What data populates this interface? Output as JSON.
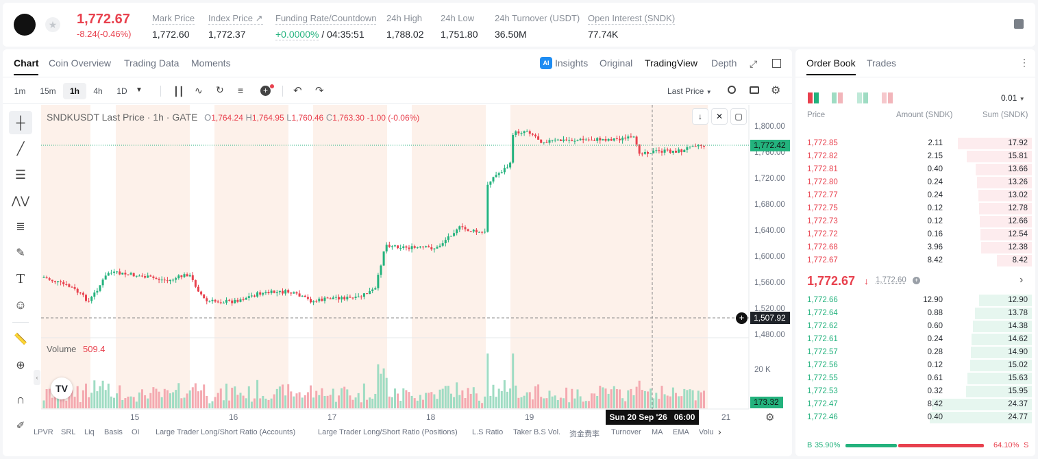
{
  "header": {
    "price": "1,772.67",
    "change": "-8.24(-0.46%)",
    "stats": [
      {
        "label": "Mark Price",
        "value": "1,772.60"
      },
      {
        "label": "Index Price",
        "value": "1,772.37"
      },
      {
        "label": "Funding Rate/Countdown",
        "value_rate": "+0.0000%",
        "value_countdown": "/ 04:35:51"
      },
      {
        "label": "24h High",
        "value": "1,788.02"
      },
      {
        "label": "24h Low",
        "value": "1,751.80"
      },
      {
        "label": "24h Turnover (USDT)",
        "value": "36.50M"
      },
      {
        "label": "Open Interest (SNDK)",
        "value": "77.74K"
      }
    ],
    "index_arrow": "↗"
  },
  "chart_tabs": [
    "Chart",
    "Coin Overview",
    "Trading Data",
    "Moments"
  ],
  "view_tabs": {
    "insights": "Insights",
    "original": "Original",
    "tradingview": "TradingView",
    "depth": "Depth"
  },
  "ai_badge": "AI",
  "intervals": [
    "1m",
    "15m",
    "1h",
    "4h",
    "1D"
  ],
  "price_source": "Last Price",
  "legend": {
    "symbol": "SNDKUSDT Last Price · 1h · GATE",
    "o_label": "O",
    "o": "1,764.24",
    "h_label": "H",
    "h": "1,764.95",
    "l_label": "L",
    "l": "1,760.46",
    "c_label": "C",
    "c": "1,763.30",
    "chg": "-1.00 (-0.06%)"
  },
  "volume_legend": {
    "label": "Volume",
    "value": "509.4"
  },
  "price_tags": {
    "last": "1,772.42",
    "cursor": "1,507.92",
    "volume": "173.32"
  },
  "crosshair_time": "Sun 20 Sep '26   06:00",
  "y_ticks": [
    "1,800.00",
    "1,760.00",
    "1,720.00",
    "1,680.00",
    "1,640.00",
    "1,600.00",
    "1,560.00",
    "1,520.00",
    "1,480.00"
  ],
  "vol_tick": "20 K",
  "x_ticks": [
    "15",
    "16",
    "17",
    "18",
    "19",
    "21"
  ],
  "indicators": [
    "LPVR",
    "SRL",
    "Liq",
    "Basis",
    "OI",
    "Large Trader Long/Short Ratio (Accounts)",
    "Large Trader Long/Short Ratio (Positions)",
    "L.S Ratio",
    "Taker B.S Vol.",
    "资金费率",
    "Turnover",
    "MA",
    "EMA",
    "Volu"
  ],
  "order_book": {
    "tabs": [
      "Order Book",
      "Trades"
    ],
    "precision": "0.01",
    "columns": [
      "Price",
      "Amount (SNDK)",
      "Sum (SNDK)"
    ],
    "asks": [
      {
        "price": "1,772.85",
        "amount": "2.11",
        "sum": "17.92"
      },
      {
        "price": "1,772.82",
        "amount": "2.15",
        "sum": "15.81"
      },
      {
        "price": "1,772.81",
        "amount": "0.40",
        "sum": "13.66"
      },
      {
        "price": "1,772.80",
        "amount": "0.24",
        "sum": "13.26"
      },
      {
        "price": "1,772.77",
        "amount": "0.24",
        "sum": "13.02"
      },
      {
        "price": "1,772.75",
        "amount": "0.12",
        "sum": "12.78"
      },
      {
        "price": "1,772.73",
        "amount": "0.12",
        "sum": "12.66"
      },
      {
        "price": "1,772.72",
        "amount": "0.16",
        "sum": "12.54"
      },
      {
        "price": "1,772.68",
        "amount": "3.96",
        "sum": "12.38"
      },
      {
        "price": "1,772.67",
        "amount": "8.42",
        "sum": "8.42"
      }
    ],
    "last_price": "1,772.67",
    "mark_price": "1,772.60",
    "bids": [
      {
        "price": "1,772.66",
        "amount": "12.90",
        "sum": "12.90"
      },
      {
        "price": "1,772.64",
        "amount": "0.88",
        "sum": "13.78"
      },
      {
        "price": "1,772.62",
        "amount": "0.60",
        "sum": "14.38"
      },
      {
        "price": "1,772.61",
        "amount": "0.24",
        "sum": "14.62"
      },
      {
        "price": "1,772.57",
        "amount": "0.28",
        "sum": "14.90"
      },
      {
        "price": "1,772.56",
        "amount": "0.12",
        "sum": "15.02"
      },
      {
        "price": "1,772.55",
        "amount": "0.61",
        "sum": "15.63"
      },
      {
        "price": "1,772.53",
        "amount": "0.32",
        "sum": "15.95"
      },
      {
        "price": "1,772.47",
        "amount": "8.42",
        "sum": "24.37"
      },
      {
        "price": "1,772.46",
        "amount": "0.40",
        "sum": "24.77"
      }
    ],
    "buy_ratio": "35.90%",
    "sell_ratio": "64.10%",
    "buy_label": "B",
    "sell_label": "S"
  },
  "colors": {
    "up": "#23b27d",
    "down": "#e8414e",
    "session": "#fdf1ea"
  }
}
